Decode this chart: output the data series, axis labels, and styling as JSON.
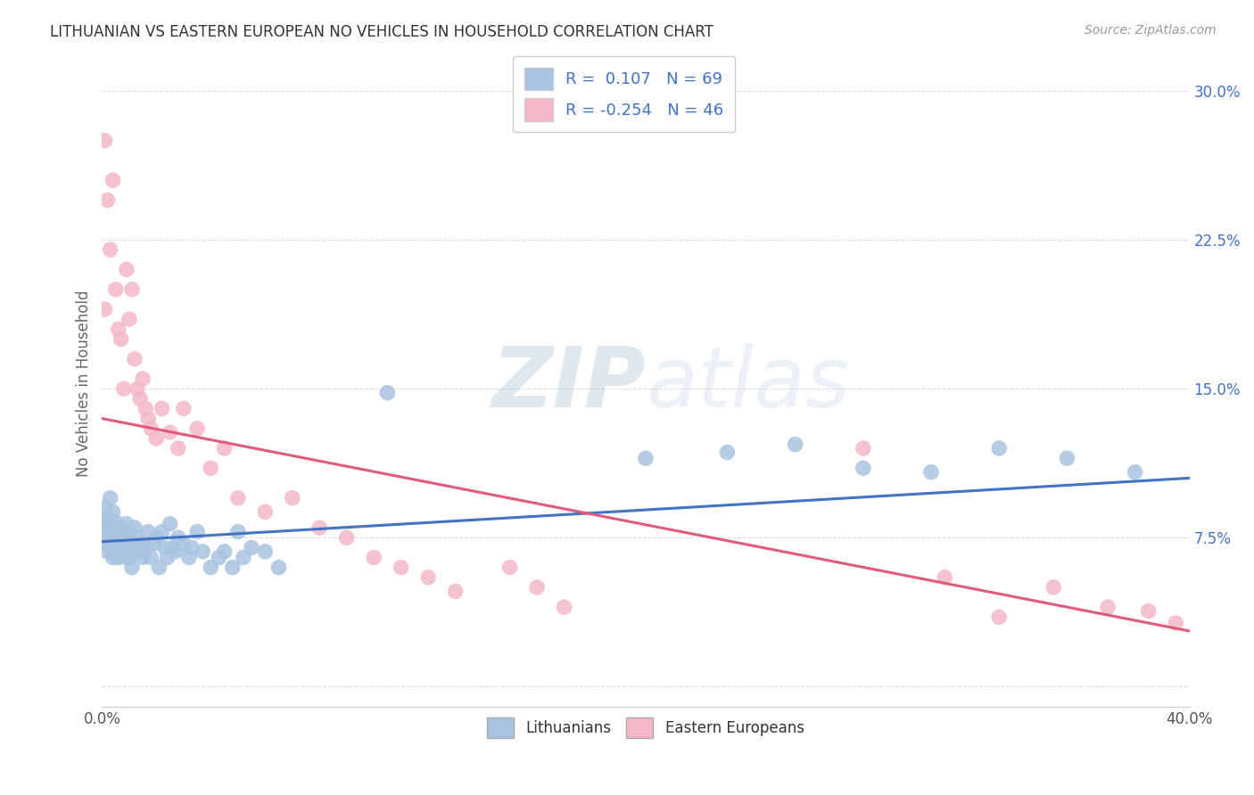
{
  "title": "LITHUANIAN VS EASTERN EUROPEAN NO VEHICLES IN HOUSEHOLD CORRELATION CHART",
  "source": "Source: ZipAtlas.com",
  "ylabel": "No Vehicles in Household",
  "xlim": [
    0.0,
    0.4
  ],
  "ylim": [
    -0.01,
    0.315
  ],
  "xticks": [
    0.0,
    0.1,
    0.2,
    0.3,
    0.4
  ],
  "xtick_labels": [
    "0.0%",
    "",
    "",
    "",
    "40.0%"
  ],
  "yticks": [
    0.0,
    0.075,
    0.15,
    0.225,
    0.3
  ],
  "ytick_labels": [
    "",
    "7.5%",
    "15.0%",
    "22.5%",
    "30.0%"
  ],
  "blue_color": "#a8c4e0",
  "pink_color": "#f4b8c8",
  "blue_line_color": "#4472c4",
  "pink_line_color": "#e05a7a",
  "legend_text_color": "#4472c4",
  "watermark_zip": "ZIP",
  "watermark_atlas": "atlas",
  "R_blue": 0.107,
  "N_blue": 69,
  "R_pink": -0.254,
  "N_pink": 46,
  "blue_scatter_x": [
    0.001,
    0.001,
    0.001,
    0.002,
    0.002,
    0.002,
    0.002,
    0.003,
    0.003,
    0.003,
    0.004,
    0.004,
    0.005,
    0.005,
    0.005,
    0.006,
    0.006,
    0.007,
    0.007,
    0.008,
    0.008,
    0.009,
    0.009,
    0.01,
    0.01,
    0.01,
    0.011,
    0.011,
    0.012,
    0.013,
    0.014,
    0.015,
    0.015,
    0.016,
    0.017,
    0.018,
    0.019,
    0.02,
    0.021,
    0.022,
    0.023,
    0.024,
    0.025,
    0.026,
    0.027,
    0.028,
    0.03,
    0.032,
    0.033,
    0.035,
    0.037,
    0.04,
    0.043,
    0.045,
    0.048,
    0.05,
    0.052,
    0.055,
    0.06,
    0.065,
    0.105,
    0.2,
    0.23,
    0.255,
    0.28,
    0.305,
    0.33,
    0.355,
    0.38
  ],
  "blue_scatter_y": [
    0.082,
    0.09,
    0.078,
    0.085,
    0.072,
    0.068,
    0.075,
    0.095,
    0.08,
    0.07,
    0.065,
    0.088,
    0.083,
    0.075,
    0.07,
    0.078,
    0.065,
    0.072,
    0.08,
    0.068,
    0.075,
    0.065,
    0.082,
    0.07,
    0.078,
    0.065,
    0.072,
    0.06,
    0.08,
    0.075,
    0.068,
    0.072,
    0.065,
    0.07,
    0.078,
    0.065,
    0.072,
    0.075,
    0.06,
    0.078,
    0.07,
    0.065,
    0.082,
    0.07,
    0.068,
    0.075,
    0.072,
    0.065,
    0.07,
    0.078,
    0.068,
    0.06,
    0.065,
    0.068,
    0.06,
    0.078,
    0.065,
    0.07,
    0.068,
    0.06,
    0.148,
    0.115,
    0.118,
    0.122,
    0.11,
    0.108,
    0.12,
    0.115,
    0.108
  ],
  "pink_scatter_x": [
    0.001,
    0.001,
    0.002,
    0.003,
    0.004,
    0.005,
    0.006,
    0.007,
    0.008,
    0.009,
    0.01,
    0.011,
    0.012,
    0.013,
    0.014,
    0.015,
    0.016,
    0.017,
    0.018,
    0.02,
    0.022,
    0.025,
    0.028,
    0.03,
    0.035,
    0.04,
    0.045,
    0.05,
    0.06,
    0.07,
    0.08,
    0.09,
    0.1,
    0.11,
    0.12,
    0.13,
    0.15,
    0.16,
    0.17,
    0.28,
    0.31,
    0.33,
    0.35,
    0.37,
    0.385,
    0.395
  ],
  "pink_scatter_y": [
    0.19,
    0.275,
    0.245,
    0.22,
    0.255,
    0.2,
    0.18,
    0.175,
    0.15,
    0.21,
    0.185,
    0.2,
    0.165,
    0.15,
    0.145,
    0.155,
    0.14,
    0.135,
    0.13,
    0.125,
    0.14,
    0.128,
    0.12,
    0.14,
    0.13,
    0.11,
    0.12,
    0.095,
    0.088,
    0.095,
    0.08,
    0.075,
    0.065,
    0.06,
    0.055,
    0.048,
    0.06,
    0.05,
    0.04,
    0.12,
    0.055,
    0.035,
    0.05,
    0.04,
    0.038,
    0.032
  ],
  "blue_trend": [
    0.073,
    0.105
  ],
  "pink_trend": [
    0.135,
    0.028
  ],
  "bg_color": "#ffffff",
  "grid_color": "#dddddd"
}
